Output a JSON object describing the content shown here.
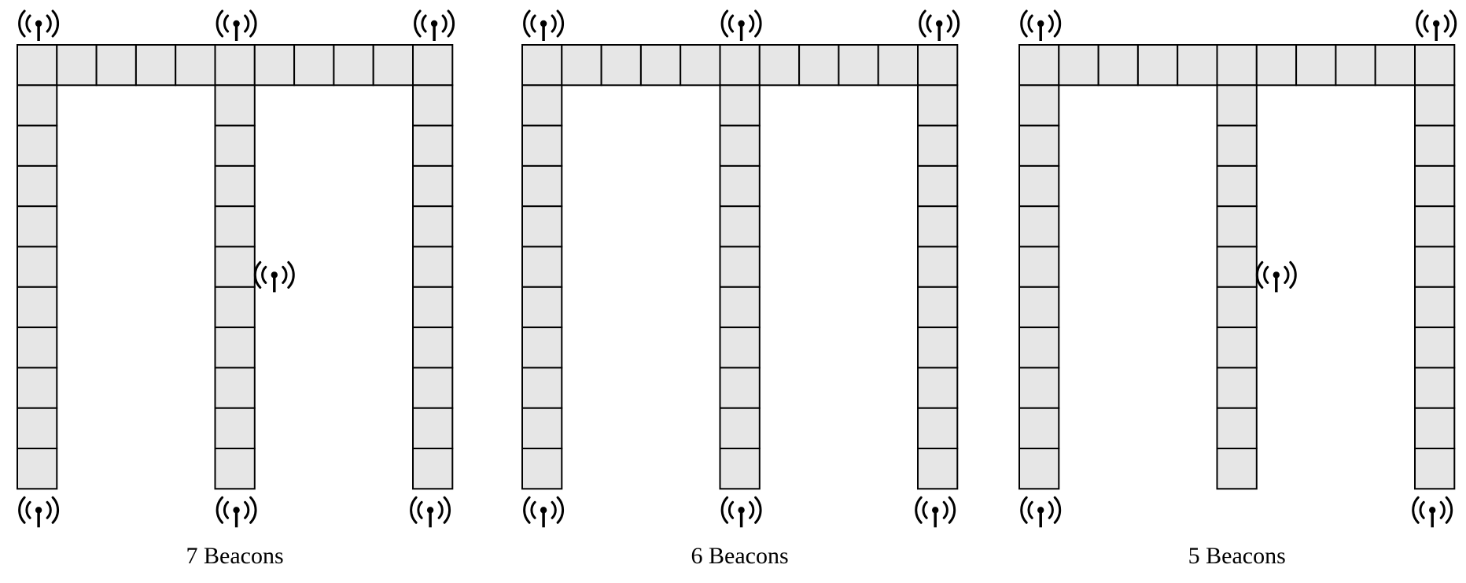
{
  "diagrams": [
    {
      "caption": "7 Beacons",
      "beacons": [
        "top-left",
        "top-middle",
        "top-right",
        "middle-side",
        "bottom-left",
        "bottom-middle",
        "bottom-right"
      ]
    },
    {
      "caption": "6 Beacons",
      "beacons": [
        "top-left",
        "top-middle",
        "top-right",
        "bottom-left",
        "bottom-middle",
        "bottom-right"
      ]
    },
    {
      "caption": "5 Beacons",
      "beacons": [
        "top-left",
        "top-right",
        "middle-side",
        "bottom-left",
        "bottom-right"
      ]
    }
  ],
  "grid": {
    "top_row_cells": 11,
    "column_cells": 11,
    "columns": 3
  },
  "icon": "beacon-antenna-icon",
  "colors": {
    "cell_fill": "#e6e6e6",
    "stroke": "#000000"
  }
}
